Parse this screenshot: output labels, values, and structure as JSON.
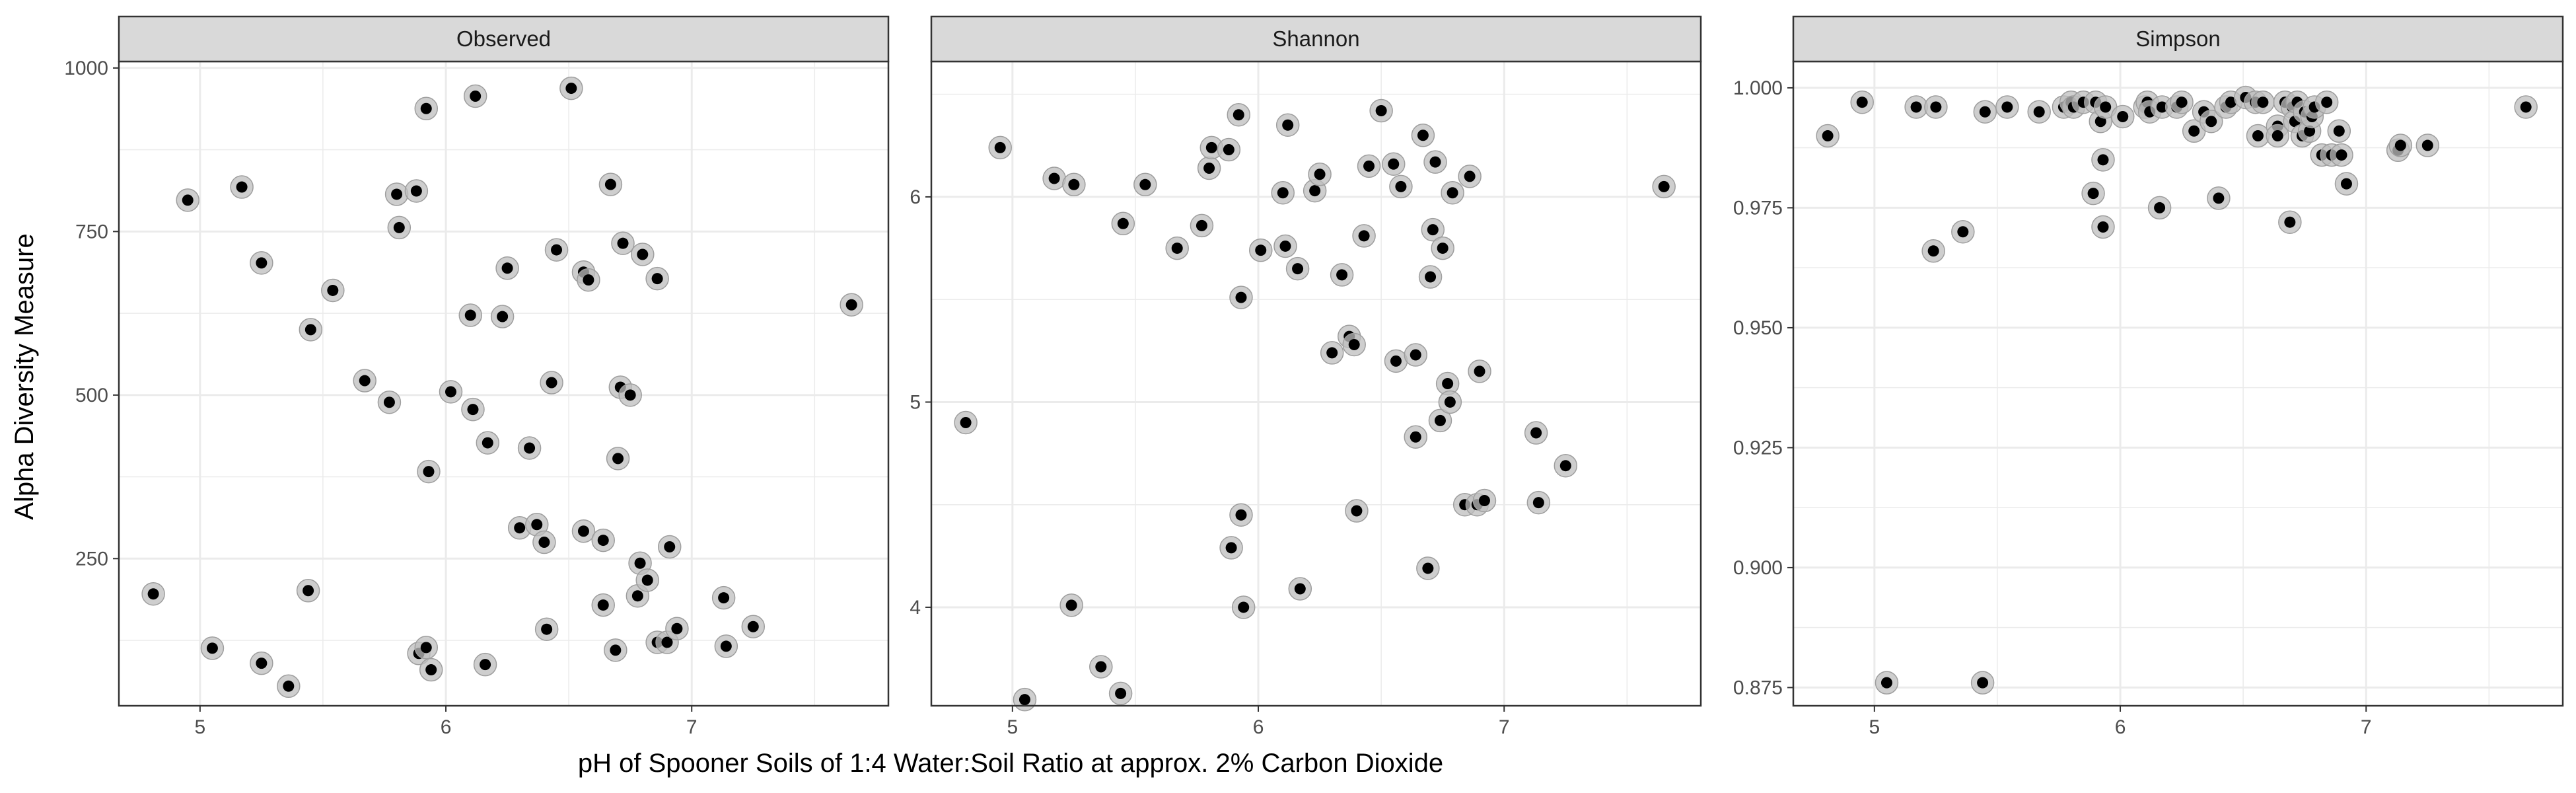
{
  "chart_data": {
    "type": "scatter",
    "xlabel": "pH of Spooner Soils of 1:4 Water:Soil Ratio at approx. 2% Carbon Dioxide",
    "ylabel": "Alpha Diversity Measure",
    "grid": true,
    "colors": {
      "strip_fill": "#d9d9d9",
      "panel_border": "#333333",
      "grid_major": "#ebebeb",
      "point_outer": "#bdbdbd",
      "point_inner": "#000000"
    },
    "panels": [
      {
        "title": "Observed",
        "xlim": [
          4.67,
          7.8
        ],
        "ylim": [
          25,
          1010
        ],
        "x_ticks": [
          5,
          6,
          7
        ],
        "x_tick_labels": [
          "5",
          "6",
          "7"
        ],
        "y_ticks": [
          250,
          500,
          750,
          1000
        ],
        "y_tick_labels": [
          "250",
          "500",
          "750",
          "1000"
        ],
        "x": [
          4.81,
          4.95,
          5.05,
          5.17,
          5.25,
          5.25,
          5.36,
          5.44,
          5.45,
          5.54,
          5.67,
          5.77,
          5.8,
          5.81,
          5.88,
          5.89,
          5.92,
          5.92,
          5.93,
          5.94,
          6.02,
          6.1,
          6.11,
          6.12,
          6.16,
          6.17,
          6.23,
          6.25,
          6.3,
          6.34,
          6.37,
          6.4,
          6.41,
          6.43,
          6.45,
          6.51,
          6.56,
          6.56,
          6.58,
          6.64,
          6.64,
          6.67,
          6.69,
          6.7,
          6.71,
          6.72,
          6.75,
          6.78,
          6.79,
          6.8,
          6.82,
          6.86,
          6.86,
          6.9,
          6.91,
          6.94,
          7.13,
          7.14,
          7.25,
          7.65
        ],
        "y": [
          196,
          798,
          113,
          818,
          90,
          702,
          55,
          201,
          600,
          660,
          522,
          489,
          807,
          756,
          812,
          105,
          114,
          938,
          383,
          80,
          505,
          622,
          478,
          957,
          88,
          427,
          620,
          694,
          297,
          419,
          302,
          275,
          142,
          519,
          722,
          969,
          292,
          688,
          676,
          179,
          278,
          822,
          110,
          403,
          512,
          732,
          500,
          193,
          243,
          715,
          217,
          122,
          678,
          122,
          268,
          143,
          190,
          116,
          146,
          638
        ]
      },
      {
        "title": "Shannon",
        "xlim": [
          4.67,
          7.8
        ],
        "ylim": [
          3.52,
          6.66
        ],
        "x_ticks": [
          5,
          6,
          7
        ],
        "x_tick_labels": [
          "5",
          "6",
          "7"
        ],
        "y_ticks": [
          4,
          5,
          6
        ],
        "y_tick_labels": [
          "4",
          "5",
          "6"
        ],
        "x": [
          4.81,
          4.95,
          5.05,
          5.17,
          5.24,
          5.25,
          5.36,
          5.44,
          5.45,
          5.54,
          5.67,
          5.77,
          5.8,
          5.81,
          5.88,
          5.89,
          5.92,
          5.93,
          5.93,
          5.94,
          6.01,
          6.1,
          6.11,
          6.12,
          6.16,
          6.17,
          6.23,
          6.25,
          6.3,
          6.34,
          6.37,
          6.39,
          6.4,
          6.43,
          6.45,
          6.5,
          6.55,
          6.56,
          6.58,
          6.64,
          6.64,
          6.67,
          6.69,
          6.7,
          6.71,
          6.72,
          6.74,
          6.75,
          6.77,
          6.78,
          6.79,
          6.84,
          6.86,
          6.89,
          6.9,
          6.92,
          7.13,
          7.14,
          7.25,
          7.65
        ],
        "y": [
          4.9,
          6.24,
          3.55,
          6.09,
          4.01,
          6.06,
          3.71,
          3.58,
          5.87,
          6.06,
          5.75,
          5.86,
          6.14,
          6.24,
          6.23,
          4.29,
          6.4,
          4.45,
          5.51,
          4.0,
          5.74,
          6.02,
          5.76,
          6.35,
          5.65,
          4.09,
          6.03,
          6.11,
          5.24,
          5.62,
          5.32,
          5.28,
          4.47,
          5.81,
          6.15,
          6.42,
          6.16,
          5.2,
          6.05,
          4.83,
          5.23,
          6.3,
          4.19,
          5.61,
          5.84,
          6.17,
          4.91,
          5.75,
          5.09,
          5.0,
          6.02,
          4.5,
          6.1,
          4.5,
          5.15,
          4.52,
          4.85,
          4.51,
          4.69,
          6.05
        ]
      },
      {
        "title": "Simpson",
        "xlim": [
          4.67,
          7.8
        ],
        "ylim": [
          0.8712,
          1.0055
        ],
        "x_ticks": [
          5,
          6,
          7
        ],
        "x_tick_labels": [
          "5",
          "6",
          "7"
        ],
        "y_ticks": [
          0.875,
          0.9,
          0.925,
          0.95,
          0.975,
          1.0
        ],
        "y_tick_labels": [
          "0.875",
          "0.900",
          "0.925",
          "0.950",
          "0.975",
          "1.000"
        ],
        "x": [
          4.81,
          4.95,
          5.05,
          5.17,
          5.24,
          5.25,
          5.36,
          5.44,
          5.45,
          5.54,
          5.67,
          5.77,
          5.8,
          5.81,
          5.85,
          5.89,
          5.9,
          5.92,
          5.93,
          5.93,
          5.94,
          6.01,
          6.1,
          6.11,
          6.12,
          6.16,
          6.17,
          6.23,
          6.25,
          6.3,
          6.34,
          6.37,
          6.4,
          6.43,
          6.45,
          6.51,
          6.55,
          6.56,
          6.58,
          6.64,
          6.64,
          6.67,
          6.69,
          6.7,
          6.71,
          6.72,
          6.74,
          6.75,
          6.77,
          6.78,
          6.79,
          6.82,
          6.84,
          6.86,
          6.89,
          6.9,
          6.92,
          7.13,
          7.14,
          7.25,
          7.65
        ],
        "y": [
          0.99,
          0.997,
          0.876,
          0.996,
          0.966,
          0.996,
          0.97,
          0.876,
          0.995,
          0.996,
          0.995,
          0.996,
          0.997,
          0.996,
          0.997,
          0.978,
          0.997,
          0.993,
          0.985,
          0.971,
          0.996,
          0.994,
          0.996,
          0.997,
          0.995,
          0.975,
          0.996,
          0.996,
          0.997,
          0.991,
          0.995,
          0.993,
          0.977,
          0.996,
          0.997,
          0.998,
          0.997,
          0.99,
          0.997,
          0.992,
          0.99,
          0.997,
          0.972,
          0.996,
          0.993,
          0.997,
          0.99,
          0.995,
          0.991,
          0.994,
          0.996,
          0.986,
          0.997,
          0.986,
          0.991,
          0.986,
          0.98,
          0.987,
          0.988,
          0.988,
          0.996
        ]
      }
    ]
  }
}
